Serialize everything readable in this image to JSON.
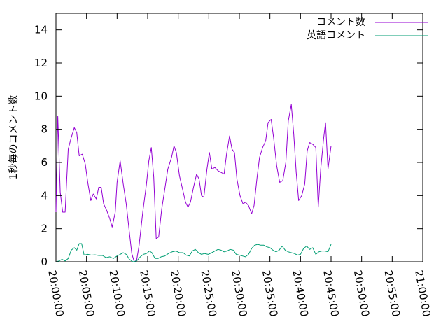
{
  "chart_data": {
    "type": "line",
    "title": "",
    "xlabel": "",
    "ylabel": "1秒毎のコメント数",
    "xlim": [
      0,
      60
    ],
    "ylim": [
      0,
      15
    ],
    "yticks": [
      0,
      2,
      4,
      6,
      8,
      10,
      12,
      14
    ],
    "xticks": [
      {
        "v": 0,
        "label": "20:00:00"
      },
      {
        "v": 5,
        "label": "20:05:00"
      },
      {
        "v": 10,
        "label": "20:10:00"
      },
      {
        "v": 15,
        "label": "20:15:00"
      },
      {
        "v": 20,
        "label": "20:20:00"
      },
      {
        "v": 25,
        "label": "20:25:00"
      },
      {
        "v": 30,
        "label": "20:30:00"
      },
      {
        "v": 35,
        "label": "20:35:00"
      },
      {
        "v": 40,
        "label": "20:40:00"
      },
      {
        "v": 45,
        "label": "20:45:00"
      },
      {
        "v": 50,
        "label": "20:50:00"
      },
      {
        "v": 55,
        "label": "20:55:00"
      },
      {
        "v": 60,
        "label": "21:00:00"
      }
    ],
    "grid": false,
    "legend_position": "top-right",
    "series": [
      {
        "name": "コメント数",
        "color": "#9400d3",
        "points": [
          [
            0,
            3.0
          ],
          [
            0.3,
            8.8
          ],
          [
            0.7,
            4.2
          ],
          [
            1.1,
            3.0
          ],
          [
            1.5,
            3.0
          ],
          [
            2.0,
            6.8
          ],
          [
            2.5,
            7.5
          ],
          [
            3.0,
            8.1
          ],
          [
            3.4,
            7.8
          ],
          [
            3.8,
            6.4
          ],
          [
            4.3,
            6.5
          ],
          [
            4.8,
            5.9
          ],
          [
            5.2,
            4.8
          ],
          [
            5.7,
            3.7
          ],
          [
            6.1,
            4.1
          ],
          [
            6.6,
            3.8
          ],
          [
            7.0,
            4.5
          ],
          [
            7.4,
            4.5
          ],
          [
            7.8,
            3.5
          ],
          [
            8.3,
            3.1
          ],
          [
            8.8,
            2.6
          ],
          [
            9.2,
            2.1
          ],
          [
            9.7,
            3.0
          ],
          [
            10.0,
            4.8
          ],
          [
            10.5,
            6.1
          ],
          [
            11.0,
            4.7
          ],
          [
            11.5,
            3.5
          ],
          [
            12.0,
            1.8
          ],
          [
            12.4,
            0.5
          ],
          [
            12.8,
            0.0
          ],
          [
            13.2,
            0.1
          ],
          [
            13.6,
            1.0
          ],
          [
            14.2,
            3.0
          ],
          [
            14.8,
            4.7
          ],
          [
            15.2,
            6.1
          ],
          [
            15.6,
            6.9
          ],
          [
            16.0,
            5.1
          ],
          [
            16.4,
            1.4
          ],
          [
            16.8,
            1.5
          ],
          [
            17.3,
            3.2
          ],
          [
            17.8,
            4.4
          ],
          [
            18.3,
            5.6
          ],
          [
            18.9,
            6.3
          ],
          [
            19.3,
            7.0
          ],
          [
            19.7,
            6.6
          ],
          [
            20.2,
            5.2
          ],
          [
            20.7,
            4.4
          ],
          [
            21.2,
            3.6
          ],
          [
            21.6,
            3.3
          ],
          [
            22.0,
            3.6
          ],
          [
            22.5,
            4.5
          ],
          [
            23.0,
            5.3
          ],
          [
            23.4,
            5.0
          ],
          [
            23.8,
            4.0
          ],
          [
            24.2,
            3.9
          ],
          [
            24.7,
            5.6
          ],
          [
            25.1,
            6.6
          ],
          [
            25.5,
            5.6
          ],
          [
            26.0,
            5.7
          ],
          [
            26.5,
            5.5
          ],
          [
            27.0,
            5.4
          ],
          [
            27.5,
            5.3
          ],
          [
            27.9,
            6.5
          ],
          [
            28.4,
            7.6
          ],
          [
            28.8,
            6.8
          ],
          [
            29.2,
            6.6
          ],
          [
            29.6,
            5.0
          ],
          [
            30.1,
            4.0
          ],
          [
            30.6,
            3.5
          ],
          [
            31.0,
            3.6
          ],
          [
            31.5,
            3.4
          ],
          [
            32.0,
            2.9
          ],
          [
            32.4,
            3.4
          ],
          [
            32.9,
            5.1
          ],
          [
            33.3,
            6.3
          ],
          [
            33.8,
            6.9
          ],
          [
            34.3,
            7.3
          ],
          [
            34.7,
            8.4
          ],
          [
            35.2,
            8.6
          ],
          [
            35.6,
            7.5
          ],
          [
            36.1,
            5.8
          ],
          [
            36.6,
            4.8
          ],
          [
            37.1,
            4.9
          ],
          [
            37.6,
            6.0
          ],
          [
            38.0,
            8.5
          ],
          [
            38.5,
            9.5
          ],
          [
            38.9,
            7.7
          ],
          [
            39.3,
            5.4
          ],
          [
            39.7,
            3.7
          ],
          [
            40.2,
            4.0
          ],
          [
            40.7,
            4.7
          ],
          [
            41.1,
            6.7
          ],
          [
            41.5,
            7.2
          ],
          [
            42.0,
            7.1
          ],
          [
            42.5,
            6.9
          ],
          [
            42.9,
            3.3
          ],
          [
            43.3,
            5.6
          ],
          [
            43.8,
            7.5
          ],
          [
            44.1,
            8.4
          ],
          [
            44.5,
            5.6
          ],
          [
            45.0,
            7.0
          ]
        ]
      },
      {
        "name": "英語コメント",
        "color": "#009e73",
        "points": [
          [
            0,
            0.0
          ],
          [
            0.5,
            0.05
          ],
          [
            1.0,
            0.15
          ],
          [
            1.5,
            0.05
          ],
          [
            2.0,
            0.2
          ],
          [
            2.5,
            0.7
          ],
          [
            3.0,
            0.85
          ],
          [
            3.4,
            0.7
          ],
          [
            3.8,
            1.1
          ],
          [
            4.2,
            1.1
          ],
          [
            4.6,
            0.4
          ],
          [
            5.2,
            0.45
          ],
          [
            5.8,
            0.4
          ],
          [
            6.4,
            0.42
          ],
          [
            7.0,
            0.38
          ],
          [
            7.6,
            0.38
          ],
          [
            8.2,
            0.25
          ],
          [
            8.8,
            0.3
          ],
          [
            9.4,
            0.2
          ],
          [
            10.0,
            0.35
          ],
          [
            10.5,
            0.45
          ],
          [
            11.0,
            0.55
          ],
          [
            11.5,
            0.45
          ],
          [
            12.0,
            0.15
          ],
          [
            12.6,
            0.0
          ],
          [
            13.2,
            0.05
          ],
          [
            13.8,
            0.3
          ],
          [
            14.3,
            0.45
          ],
          [
            14.8,
            0.5
          ],
          [
            15.3,
            0.65
          ],
          [
            15.7,
            0.55
          ],
          [
            16.2,
            0.2
          ],
          [
            16.7,
            0.2
          ],
          [
            17.2,
            0.3
          ],
          [
            17.8,
            0.35
          ],
          [
            18.4,
            0.5
          ],
          [
            19.0,
            0.6
          ],
          [
            19.6,
            0.65
          ],
          [
            20.2,
            0.55
          ],
          [
            20.8,
            0.55
          ],
          [
            21.3,
            0.4
          ],
          [
            21.8,
            0.35
          ],
          [
            22.3,
            0.65
          ],
          [
            22.8,
            0.75
          ],
          [
            23.3,
            0.55
          ],
          [
            23.8,
            0.45
          ],
          [
            24.3,
            0.5
          ],
          [
            24.9,
            0.45
          ],
          [
            25.5,
            0.55
          ],
          [
            26.0,
            0.65
          ],
          [
            26.5,
            0.75
          ],
          [
            27.0,
            0.7
          ],
          [
            27.5,
            0.6
          ],
          [
            28.0,
            0.65
          ],
          [
            28.5,
            0.75
          ],
          [
            29.0,
            0.7
          ],
          [
            29.5,
            0.45
          ],
          [
            30.0,
            0.4
          ],
          [
            30.5,
            0.35
          ],
          [
            31.0,
            0.3
          ],
          [
            31.5,
            0.45
          ],
          [
            32.0,
            0.8
          ],
          [
            32.5,
            1.0
          ],
          [
            33.0,
            1.05
          ],
          [
            33.5,
            1.0
          ],
          [
            34.0,
            1.0
          ],
          [
            34.5,
            0.9
          ],
          [
            35.0,
            0.85
          ],
          [
            35.5,
            0.7
          ],
          [
            36.0,
            0.6
          ],
          [
            36.5,
            0.7
          ],
          [
            37.0,
            0.95
          ],
          [
            37.5,
            0.7
          ],
          [
            38.0,
            0.6
          ],
          [
            38.5,
            0.55
          ],
          [
            39.0,
            0.5
          ],
          [
            39.5,
            0.4
          ],
          [
            40.0,
            0.45
          ],
          [
            40.5,
            0.8
          ],
          [
            41.0,
            0.95
          ],
          [
            41.5,
            0.75
          ],
          [
            42.0,
            0.85
          ],
          [
            42.5,
            0.45
          ],
          [
            43.0,
            0.6
          ],
          [
            43.5,
            0.65
          ],
          [
            44.0,
            0.65
          ],
          [
            44.5,
            0.6
          ],
          [
            45.0,
            1.05
          ]
        ]
      }
    ]
  }
}
